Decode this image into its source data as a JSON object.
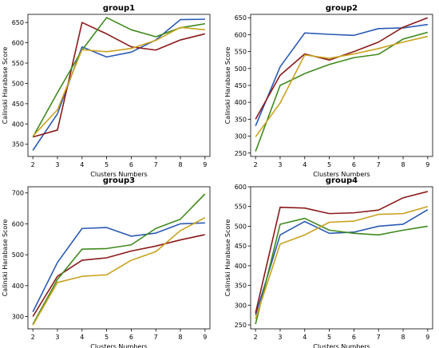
{
  "colors": {
    "blue": "#2a5ab5",
    "darkred": "#8b1a1a",
    "green": "#3f8a1e",
    "orange": "#c9a21e"
  },
  "chart_data": [
    {
      "type": "line",
      "title": "group1",
      "xlabel": "Clusters Numbers",
      "ylabel": "Calinski Harabase Score",
      "x": [
        2,
        3,
        4,
        5,
        6,
        7,
        8,
        9
      ],
      "xlim": [
        1.8,
        9.2
      ],
      "ylim": [
        320,
        670
      ],
      "yticks": [
        350,
        400,
        450,
        500,
        550,
        600,
        650
      ],
      "grid": false,
      "series": [
        {
          "color": "#2a5ab5",
          "values": [
            335,
            425,
            590,
            565,
            577,
            607,
            657,
            658
          ]
        },
        {
          "color": "#8b1a1a",
          "values": [
            368,
            385,
            650,
            622,
            590,
            582,
            607,
            622
          ]
        },
        {
          "color": "#3f8a1e",
          "values": [
            368,
            477,
            582,
            662,
            632,
            615,
            637,
            647
          ]
        },
        {
          "color": "#c9a21e",
          "values": [
            370,
            435,
            583,
            578,
            586,
            606,
            638,
            632
          ]
        }
      ]
    },
    {
      "type": "line",
      "title": "group2",
      "xlabel": "Clusters Numbers",
      "ylabel": "Calinski Harabase Score",
      "x": [
        2,
        3,
        4,
        5,
        6,
        7,
        8,
        9
      ],
      "xlim": [
        1.8,
        9.2
      ],
      "ylim": [
        240,
        660
      ],
      "yticks": [
        250,
        300,
        350,
        400,
        450,
        500,
        550,
        600,
        650
      ],
      "grid": false,
      "series": [
        {
          "color": "#2a5ab5",
          "values": [
            330,
            505,
            605,
            601,
            598,
            618,
            620,
            630
          ]
        },
        {
          "color": "#8b1a1a",
          "values": [
            350,
            480,
            543,
            525,
            550,
            578,
            622,
            650
          ]
        },
        {
          "color": "#3f8a1e",
          "values": [
            255,
            450,
            485,
            512,
            532,
            542,
            587,
            607
          ]
        },
        {
          "color": "#c9a21e",
          "values": [
            298,
            398,
            540,
            530,
            543,
            559,
            578,
            595
          ]
        }
      ]
    },
    {
      "type": "line",
      "title": "group3",
      "xlabel": "Clusters Numbers",
      "ylabel": "Calinski Harabase Score",
      "x": [
        2,
        3,
        4,
        5,
        6,
        7,
        8,
        9
      ],
      "xlim": [
        1.8,
        9.2
      ],
      "ylim": [
        260,
        720
      ],
      "yticks": [
        300,
        400,
        500,
        600,
        700
      ],
      "grid": false,
      "series": [
        {
          "color": "#2a5ab5",
          "values": [
            315,
            475,
            585,
            588,
            560,
            570,
            600,
            603
          ]
        },
        {
          "color": "#8b1a1a",
          "values": [
            300,
            430,
            482,
            490,
            512,
            528,
            548,
            565
          ]
        },
        {
          "color": "#3f8a1e",
          "values": [
            275,
            420,
            518,
            520,
            532,
            585,
            615,
            697
          ]
        },
        {
          "color": "#c9a21e",
          "values": [
            272,
            410,
            430,
            435,
            482,
            510,
            578,
            620
          ]
        }
      ]
    },
    {
      "type": "line",
      "title": "group4",
      "xlabel": "Clusters Numbers",
      "ylabel": "Calinski Harabase Score",
      "x": [
        2,
        3,
        4,
        5,
        6,
        7,
        8,
        9
      ],
      "xlim": [
        1.8,
        9.2
      ],
      "ylim": [
        240,
        600
      ],
      "yticks": [
        250,
        300,
        350,
        400,
        450,
        500,
        550,
        600
      ],
      "grid": false,
      "series": [
        {
          "color": "#2a5ab5",
          "values": [
            275,
            478,
            512,
            482,
            485,
            500,
            505,
            542
          ]
        },
        {
          "color": "#8b1a1a",
          "values": [
            280,
            548,
            546,
            532,
            534,
            541,
            572,
            588
          ]
        },
        {
          "color": "#3f8a1e",
          "values": [
            252,
            505,
            520,
            490,
            482,
            478,
            490,
            500
          ]
        },
        {
          "color": "#c9a21e",
          "values": [
            265,
            455,
            478,
            510,
            513,
            530,
            532,
            550
          ]
        }
      ]
    }
  ]
}
